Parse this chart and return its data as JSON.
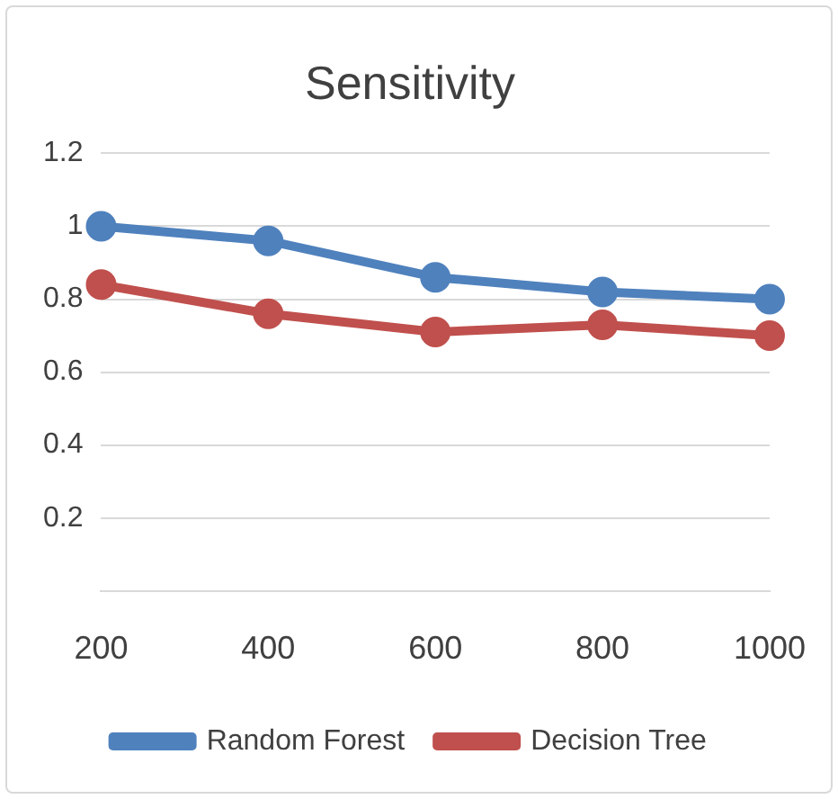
{
  "chart_data": {
    "type": "line",
    "title": "Sensitivity",
    "categories": [
      "200",
      "400",
      "600",
      "800",
      "1000"
    ],
    "series": [
      {
        "name": "Random Forest",
        "color": "#4f81bd",
        "values": [
          1.0,
          0.96,
          0.86,
          0.82,
          0.8
        ]
      },
      {
        "name": "Decision Tree",
        "color": "#c0504d",
        "values": [
          0.84,
          0.76,
          0.71,
          0.73,
          0.7
        ]
      }
    ],
    "ylim": [
      0,
      1.2
    ],
    "yticks": [
      {
        "value": 0,
        "label": null
      },
      0.2,
      0.4,
      0.6,
      0.8,
      1,
      1.2
    ],
    "grid": "y",
    "legend": "bottom",
    "marker": "circle",
    "line_style": "solid"
  }
}
